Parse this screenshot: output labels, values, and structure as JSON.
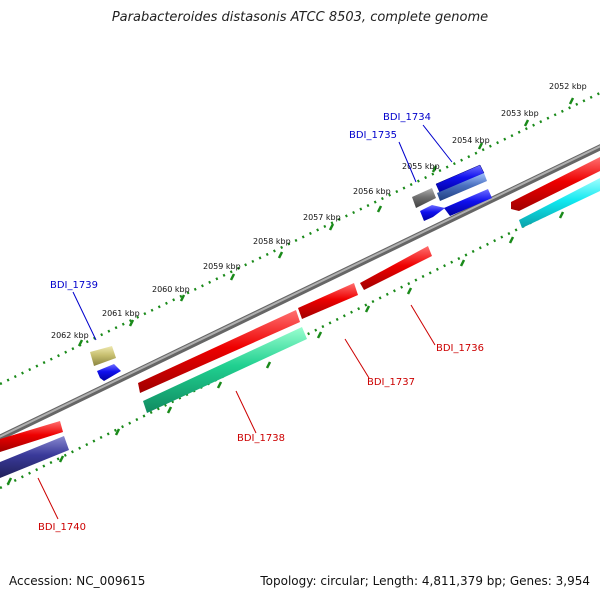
{
  "title": "Parabacteroides distasonis ATCC 8503, complete genome",
  "footer": {
    "accession": "Accession: NC_009615",
    "summary": "Topology: circular; Length: 4,811,379 bp; Genes: 3,954"
  },
  "scale_labels": [
    "2052 kbp",
    "2053 kbp",
    "2054 kbp",
    "2055 kbp",
    "2056 kbp",
    "2057 kbp",
    "2058 kbp",
    "2059 kbp",
    "2060 kbp",
    "2061 kbp",
    "2062 kbp"
  ],
  "gene_labels": [
    {
      "name": "BDI_1734",
      "strand": "forward",
      "color": "#0000cc"
    },
    {
      "name": "BDI_1735",
      "strand": "forward",
      "color": "#0000cc"
    },
    {
      "name": "BDI_1739",
      "strand": "forward",
      "color": "#0000cc"
    },
    {
      "name": "BDI_1736",
      "strand": "reverse",
      "color": "#cc0000"
    },
    {
      "name": "BDI_1737",
      "strand": "reverse",
      "color": "#cc0000"
    },
    {
      "name": "BDI_1738",
      "strand": "reverse",
      "color": "#cc0000"
    },
    {
      "name": "BDI_1740",
      "strand": "reverse",
      "color": "#cc0000"
    }
  ],
  "colors": {
    "backbone": "#8a8a8a",
    "forward_gene": "#1010ee",
    "reverse_gene": "#ee1010",
    "cog_teal": "#20d090",
    "cog_cyan": "#10e8f0",
    "cog_navy": "#3a3a9a",
    "cog_olive": "#c8c070",
    "cog_gray": "#707070",
    "cog_steel": "#4a70c0",
    "ticks": "#1a8a1a"
  }
}
